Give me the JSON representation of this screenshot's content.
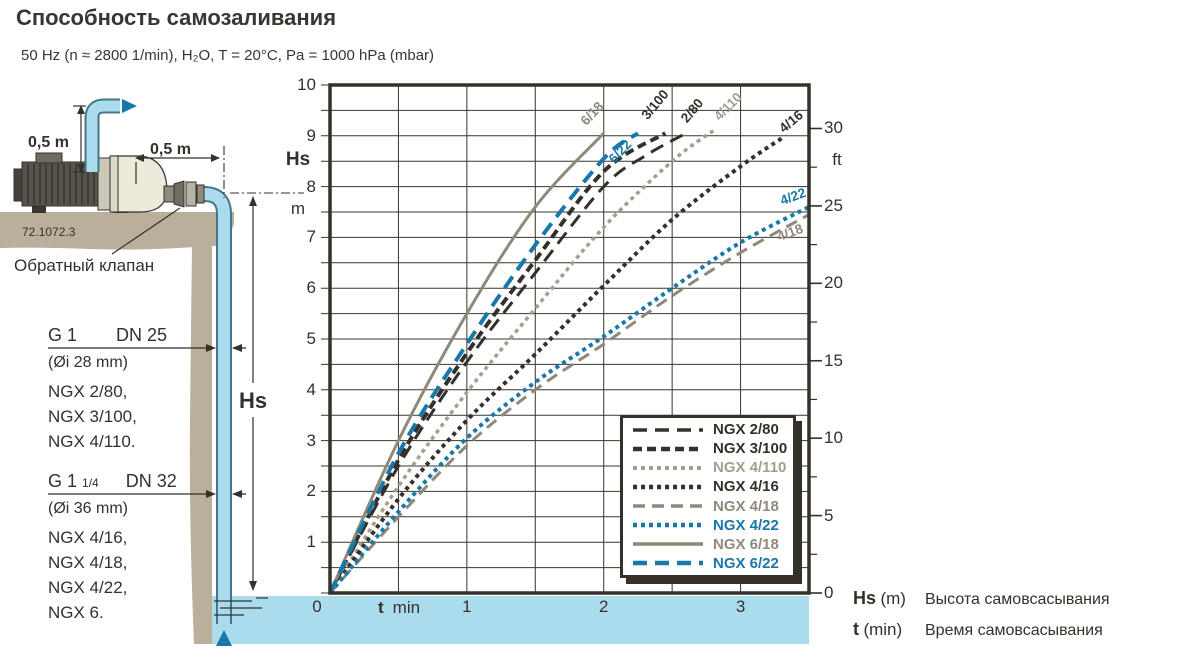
{
  "title": "Способность самозаливания",
  "subtitle": "50 Hz (n ≈ 2800 1/min),  H₂O, T = 20°C, Pa = 1000 hPa (mbar)",
  "diagram": {
    "dim_vertical": "0,5 m",
    "dim_horizontal": "0,5 m",
    "figure_number": "72.1072.3",
    "check_valve_label": "Обратный клапан",
    "hs_label": "Hs",
    "pipe_specs": [
      {
        "thread": "G 1",
        "fraction": "",
        "dn": "DN 25",
        "diameter": "(Øi 28 mm)",
        "models": [
          "NGX 2/80,",
          "NGX 3/100,",
          "NGX 4/110."
        ]
      },
      {
        "thread": "G 1",
        "fraction": "1/4",
        "dn": "DN 32",
        "diameter": "(Øi 36 mm)",
        "models": [
          "NGX 4/16,",
          "NGX 4/18,",
          "NGX 4/22,",
          "NGX 6."
        ]
      }
    ]
  },
  "chart_data": {
    "type": "line",
    "x_axis": {
      "symbol": "t",
      "unit": "min",
      "min": 0,
      "max": 3.5,
      "grid_step": 0.5,
      "origin_label": "0",
      "ticks": [
        1,
        2,
        3
      ]
    },
    "y_axis_left": {
      "name": "Hs",
      "unit": "m",
      "min": 0,
      "max": 10,
      "grid_step": 0.5,
      "ticks": [
        10,
        9,
        8,
        7,
        6,
        5,
        4,
        3,
        2,
        1
      ]
    },
    "y_axis_right": {
      "unit": "ft",
      "m_per_ft": 0.3048,
      "ticks": [
        30,
        25,
        20,
        15,
        10,
        5,
        0
      ],
      "minor_step": 2.5
    },
    "grid": true,
    "legend_position": "bottom-right",
    "series": [
      {
        "name": "NGX 2/80",
        "color": "#35302a",
        "dash": "14,8",
        "width": 3,
        "points": [
          [
            0,
            0
          ],
          [
            0.5,
            2.5
          ],
          [
            1,
            4.55
          ],
          [
            1.5,
            6.3
          ],
          [
            2,
            8.0
          ],
          [
            2.3,
            8.6
          ],
          [
            2.6,
            9.05
          ]
        ],
        "end_label": {
          "text": "2/80",
          "t": 2.6,
          "hs": 9.05,
          "dx": 6,
          "dy": -21,
          "angle": -50
        }
      },
      {
        "name": "NGX 3/100",
        "color": "#35302a",
        "dash": "9,5",
        "width": 4,
        "points": [
          [
            0,
            0
          ],
          [
            0.5,
            2.62
          ],
          [
            1,
            4.72
          ],
          [
            1.5,
            6.55
          ],
          [
            2,
            8.3
          ],
          [
            2.45,
            9.05
          ]
        ],
        "end_label": {
          "text": "3/100",
          "t": 2.45,
          "hs": 9.05,
          "dx": -10,
          "dy": -27,
          "angle": -50
        }
      },
      {
        "name": "NGX 4/110",
        "color": "#a49e90",
        "dash": "4,4",
        "width": 3.5,
        "points": [
          [
            0,
            0
          ],
          [
            0.5,
            2.1
          ],
          [
            1,
            3.95
          ],
          [
            1.5,
            5.6
          ],
          [
            2,
            7.2
          ],
          [
            2.5,
            8.5
          ],
          [
            2.8,
            9.1
          ]
        ],
        "end_label": {
          "text": "4/110",
          "t": 2.8,
          "hs": 9.1,
          "dx": 15,
          "dy": -23,
          "angle": -45
        }
      },
      {
        "name": "NGX 4/16",
        "color": "#35302a",
        "dash": "4,4",
        "width": 4,
        "points": [
          [
            0,
            0
          ],
          [
            0.5,
            1.85
          ],
          [
            1,
            3.4
          ],
          [
            1.5,
            4.7
          ],
          [
            2,
            6.05
          ],
          [
            2.5,
            7.35
          ],
          [
            3,
            8.4
          ],
          [
            3.3,
            8.95
          ]
        ],
        "end_label": {
          "text": "4/16",
          "t": 3.3,
          "hs": 8.95,
          "dx": 9,
          "dy": -15,
          "angle": -40
        }
      },
      {
        "name": "NGX 4/18",
        "color": "#8f897b",
        "dash": "12,7",
        "width": 3,
        "points": [
          [
            0,
            0
          ],
          [
            0.5,
            1.5
          ],
          [
            1,
            2.9
          ],
          [
            1.5,
            4.0
          ],
          [
            2,
            4.9
          ],
          [
            2.5,
            5.85
          ],
          [
            3,
            6.7
          ],
          [
            3.5,
            7.45
          ]
        ],
        "end_label": {
          "text": "4/18",
          "t": 3.5,
          "hs": 7.45,
          "dx": -19,
          "dy": 19,
          "angle": -20
        }
      },
      {
        "name": "NGX 4/22",
        "color": "#1878a8",
        "dash": "4,4",
        "width": 4,
        "points": [
          [
            0,
            0
          ],
          [
            0.5,
            1.6
          ],
          [
            1,
            3.05
          ],
          [
            1.5,
            4.15
          ],
          [
            2,
            5.05
          ],
          [
            2.5,
            6.0
          ],
          [
            3,
            6.9
          ],
          [
            3.5,
            7.6
          ]
        ],
        "end_label": {
          "text": "4/22",
          "t": 3.5,
          "hs": 7.6,
          "dx": -16,
          "dy": -9,
          "angle": -20
        }
      },
      {
        "name": "NGX 6/18",
        "color": "#8f897b",
        "dash": "",
        "width": 3,
        "points": [
          [
            0,
            0
          ],
          [
            0.5,
            3.0
          ],
          [
            1,
            5.5
          ],
          [
            1.5,
            7.6
          ],
          [
            2,
            9.05
          ]
        ],
        "end_label": {
          "text": "6/18",
          "t": 2.0,
          "hs": 9.05,
          "dx": -12,
          "dy": -18,
          "angle": -47
        }
      },
      {
        "name": "NGX 6/22",
        "color": "#1878a8",
        "dash": "14,8",
        "width": 4,
        "points": [
          [
            0,
            0
          ],
          [
            0.5,
            2.75
          ],
          [
            1,
            4.9
          ],
          [
            1.5,
            6.85
          ],
          [
            2,
            8.55
          ],
          [
            2.25,
            9.05
          ]
        ],
        "end_label": {
          "text": "6/22",
          "t": 2.25,
          "hs": 9.05,
          "dx": -18,
          "dy": 20,
          "angle": -47
        }
      }
    ]
  },
  "footer": {
    "hs": {
      "symbol": "Hs",
      "unit": "(m)",
      "label": "Высота самовсасывания"
    },
    "t": {
      "symbol": "t",
      "unit": "(min)",
      "label": "Время самовсасывания"
    }
  }
}
